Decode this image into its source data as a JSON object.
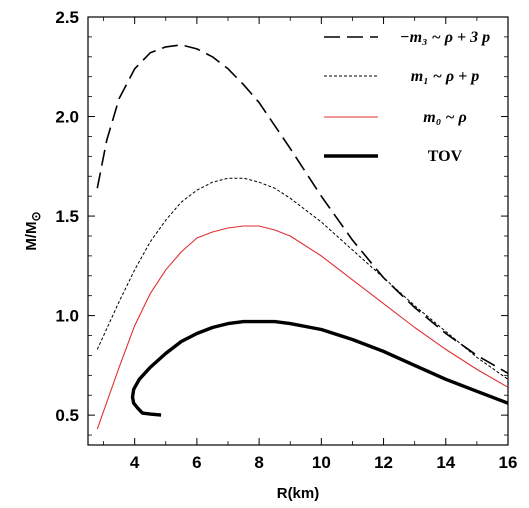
{
  "chart_data": {
    "type": "line",
    "title": "",
    "xlabel": "R(km)",
    "ylabel": "M/M⊙",
    "xlim": [
      2.5,
      16
    ],
    "ylim": [
      0.35,
      2.5
    ],
    "xticks": [
      4,
      6,
      8,
      10,
      12,
      14,
      16
    ],
    "xtick_labels": [
      "4",
      "6",
      "8",
      "10",
      "12",
      "14",
      "16"
    ],
    "yticks": [
      0.5,
      1.0,
      1.5,
      2.0,
      2.5
    ],
    "ytick_labels": [
      "0.5",
      "1.0",
      "1.5",
      "2.0",
      "2.5"
    ],
    "grid": false,
    "legend_position": "top-right",
    "series": [
      {
        "name": "m3 ~ ρ + 3 p",
        "legend_label": "−m₃ ~ ρ + 3 p",
        "color": "#000000",
        "dash": "dashed",
        "x": [
          2.8,
          3.1,
          3.5,
          4.0,
          4.5,
          5.0,
          5.5,
          6.0,
          6.5,
          7.0,
          7.5,
          8.0,
          9.0,
          10.0,
          11.0,
          12.0,
          13.0,
          14.0,
          15.0,
          16.0
        ],
        "y": [
          1.64,
          1.88,
          2.09,
          2.24,
          2.32,
          2.35,
          2.36,
          2.34,
          2.3,
          2.24,
          2.16,
          2.07,
          1.84,
          1.6,
          1.38,
          1.19,
          1.04,
          0.91,
          0.8,
          0.71
        ]
      },
      {
        "name": "m1 ~ ρ + p",
        "legend_label": "m₁ ~ ρ + p",
        "color": "#000000",
        "dash": "dotted",
        "x": [
          2.8,
          3.5,
          4.0,
          4.5,
          5.0,
          5.5,
          6.0,
          6.5,
          7.0,
          7.5,
          8.0,
          8.5,
          9.0,
          10.0,
          11.0,
          12.0,
          13.0,
          14.0,
          15.0,
          16.0
        ],
        "y": [
          0.83,
          1.07,
          1.23,
          1.37,
          1.48,
          1.57,
          1.63,
          1.67,
          1.69,
          1.69,
          1.67,
          1.64,
          1.59,
          1.47,
          1.33,
          1.19,
          1.05,
          0.92,
          0.79,
          0.68
        ]
      },
      {
        "name": "m0 ~ ρ",
        "legend_label": "m₀ ~ ρ",
        "color": "#e03030",
        "dash": "solid",
        "x": [
          2.8,
          3.0,
          3.5,
          4.0,
          4.5,
          5.0,
          5.5,
          6.0,
          6.5,
          7.0,
          7.5,
          8.0,
          8.5,
          9.0,
          10.0,
          11.0,
          12.0,
          13.0,
          14.0,
          15.0,
          16.0
        ],
        "y": [
          0.43,
          0.52,
          0.74,
          0.95,
          1.11,
          1.23,
          1.32,
          1.39,
          1.42,
          1.44,
          1.45,
          1.45,
          1.43,
          1.4,
          1.3,
          1.18,
          1.06,
          0.94,
          0.83,
          0.73,
          0.64
        ]
      },
      {
        "name": "TOV",
        "legend_label": "TOV",
        "color": "#000000",
        "dash": "solid",
        "bold": true,
        "x": [
          4.85,
          4.5,
          4.25,
          4.1,
          3.97,
          3.93,
          3.97,
          4.15,
          4.5,
          5.0,
          5.5,
          6.0,
          6.5,
          7.0,
          7.5,
          8.0,
          8.5,
          9.0,
          10.0,
          11.0,
          12.0,
          13.0,
          14.0,
          15.0,
          16.0
        ],
        "y": [
          0.5,
          0.505,
          0.51,
          0.535,
          0.56,
          0.59,
          0.63,
          0.68,
          0.74,
          0.81,
          0.87,
          0.91,
          0.94,
          0.96,
          0.97,
          0.97,
          0.97,
          0.96,
          0.93,
          0.88,
          0.82,
          0.75,
          0.68,
          0.62,
          0.56
        ]
      }
    ]
  }
}
